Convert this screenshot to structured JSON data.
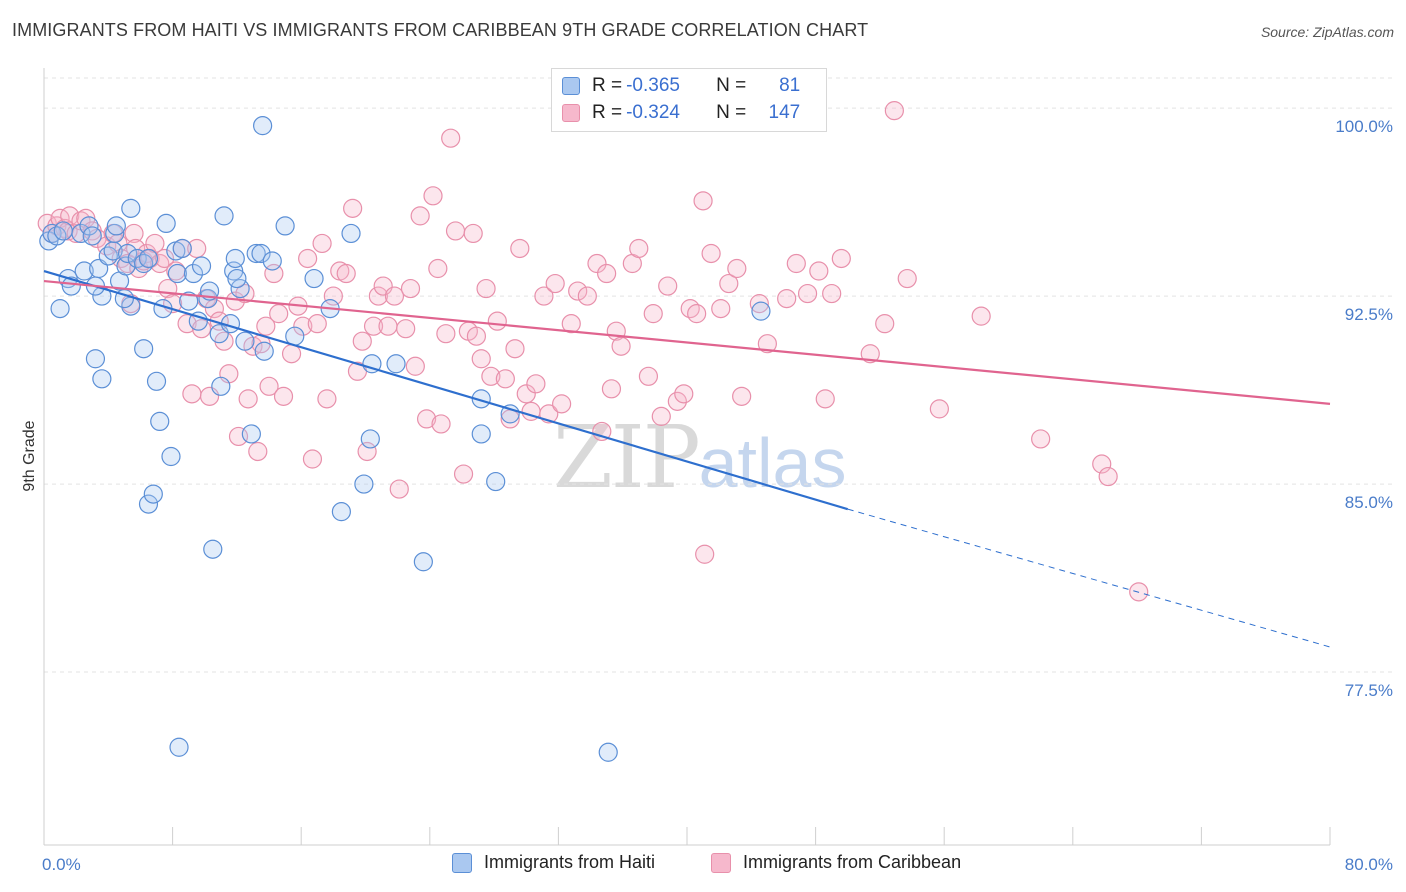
{
  "header": {
    "title": "IMMIGRANTS FROM HAITI VS IMMIGRANTS FROM CARIBBEAN 9TH GRADE CORRELATION CHART",
    "source": "Source: ZipAtlas.com"
  },
  "watermark": {
    "part1": "ZIP",
    "part2": "atlas"
  },
  "legend": {
    "rows": [
      {
        "r_label": "R = ",
        "r_value": "-0.365",
        "n_label": "N = ",
        "n_value": "81"
      },
      {
        "r_label": "R = ",
        "r_value": "-0.324",
        "n_label": "N = ",
        "n_value": "147"
      }
    ]
  },
  "bottom_legend": {
    "haiti": "Immigrants from Haiti",
    "caribbean": "Immigrants from Caribbean"
  },
  "colors": {
    "haiti_fill": "#aac8f0",
    "haiti_stroke": "#5b8fd6",
    "haiti_line": "#2e6fce",
    "caribbean_fill": "#f6b8cc",
    "caribbean_stroke": "#e890ab",
    "caribbean_line": "#e0648f",
    "grid": "#e3e3e3",
    "axis_text": "#4a7cc9"
  },
  "chart_data": {
    "type": "scatter",
    "title": "IMMIGRANTS FROM HAITI VS IMMIGRANTS FROM CARIBBEAN 9TH GRADE CORRELATION CHART",
    "xlabel": "",
    "ylabel": "9th Grade",
    "xlim": [
      0,
      80
    ],
    "ylim": [
      70.6,
      101.6
    ],
    "x_tick_labels": [
      "0.0%",
      "80.0%"
    ],
    "y_ticks": [
      77.5,
      85.0,
      92.5,
      100.0
    ],
    "y_tick_labels": [
      "77.5%",
      "85.0%",
      "92.5%",
      "100.0%"
    ],
    "grid": true,
    "legend_position": "top-center",
    "series": [
      {
        "name": "Immigrants from Haiti",
        "R": -0.365,
        "N": 81,
        "trend": {
          "x_start": 0.0,
          "y_start": 93.5,
          "x_solid_end": 50.0,
          "y_solid_end": 84.0,
          "x_dashed_end": 80.0,
          "y_dashed_end": 78.5
        },
        "points": [
          [
            0.3,
            94.7
          ],
          [
            0.5,
            95.0
          ],
          [
            0.8,
            94.9
          ],
          [
            1.2,
            95.1
          ],
          [
            1.0,
            92.0
          ],
          [
            1.5,
            93.2
          ],
          [
            1.7,
            92.9
          ],
          [
            2.3,
            95.0
          ],
          [
            2.8,
            95.3
          ],
          [
            2.5,
            93.5
          ],
          [
            3.0,
            94.9
          ],
          [
            3.4,
            93.6
          ],
          [
            3.6,
            89.2
          ],
          [
            3.2,
            90.0
          ],
          [
            3.6,
            92.5
          ],
          [
            4.0,
            94.1
          ],
          [
            4.3,
            94.3
          ],
          [
            4.4,
            95.0
          ],
          [
            4.5,
            95.3
          ],
          [
            4.7,
            93.1
          ],
          [
            5.1,
            93.7
          ],
          [
            5.2,
            94.2
          ],
          [
            5.4,
            92.1
          ],
          [
            5.4,
            96.0
          ],
          [
            5.8,
            94.0
          ],
          [
            6.2,
            93.8
          ],
          [
            6.2,
            90.4
          ],
          [
            6.5,
            94.0
          ],
          [
            6.5,
            84.2
          ],
          [
            6.8,
            84.6
          ],
          [
            7.0,
            89.1
          ],
          [
            7.2,
            87.5
          ],
          [
            7.6,
            95.4
          ],
          [
            7.9,
            86.1
          ],
          [
            8.2,
            94.3
          ],
          [
            8.3,
            93.4
          ],
          [
            8.4,
            74.5
          ],
          [
            8.6,
            94.4
          ],
          [
            9.0,
            92.3
          ],
          [
            9.3,
            93.4
          ],
          [
            9.6,
            91.5
          ],
          [
            9.8,
            93.7
          ],
          [
            10.2,
            92.4
          ],
          [
            10.3,
            92.7
          ],
          [
            10.5,
            82.4
          ],
          [
            10.9,
            91.0
          ],
          [
            11.0,
            88.9
          ],
          [
            11.2,
            95.7
          ],
          [
            11.6,
            91.4
          ],
          [
            11.8,
            93.5
          ],
          [
            11.9,
            94.0
          ],
          [
            12.2,
            92.8
          ],
          [
            12.5,
            90.7
          ],
          [
            12.9,
            87.0
          ],
          [
            13.2,
            94.2
          ],
          [
            13.5,
            94.2
          ],
          [
            13.6,
            99.3
          ],
          [
            13.7,
            90.3
          ],
          [
            14.2,
            93.9
          ],
          [
            15.0,
            95.3
          ],
          [
            15.6,
            90.9
          ],
          [
            16.8,
            93.2
          ],
          [
            17.8,
            92.0
          ],
          [
            18.5,
            83.9
          ],
          [
            19.1,
            95.0
          ],
          [
            19.9,
            85.0
          ],
          [
            20.3,
            86.8
          ],
          [
            20.4,
            89.8
          ],
          [
            21.9,
            89.8
          ],
          [
            23.6,
            81.9
          ],
          [
            27.2,
            88.4
          ],
          [
            27.2,
            87.0
          ],
          [
            28.1,
            85.1
          ],
          [
            29.0,
            87.8
          ],
          [
            32.5,
            100.0
          ],
          [
            35.1,
            74.3
          ],
          [
            44.6,
            91.9
          ],
          [
            3.2,
            92.9
          ],
          [
            5.0,
            92.4
          ],
          [
            7.4,
            92.0
          ],
          [
            12.0,
            93.2
          ]
        ]
      },
      {
        "name": "Immigrants from Caribbean",
        "R": -0.324,
        "N": 147,
        "trend": {
          "x_start": 0.0,
          "y_start": 93.1,
          "x_end": 80.0,
          "y_end": 88.2
        },
        "points": [
          [
            0.2,
            95.4
          ],
          [
            0.5,
            95.0
          ],
          [
            0.8,
            95.3
          ],
          [
            1.0,
            95.6
          ],
          [
            1.3,
            95.2
          ],
          [
            1.5,
            95.1
          ],
          [
            1.6,
            95.7
          ],
          [
            2.0,
            95.0
          ],
          [
            2.3,
            95.5
          ],
          [
            2.6,
            95.6
          ],
          [
            3.0,
            95.1
          ],
          [
            3.3,
            94.8
          ],
          [
            3.9,
            94.5
          ],
          [
            4.3,
            95.0
          ],
          [
            4.6,
            94.6
          ],
          [
            4.8,
            94.0
          ],
          [
            5.2,
            93.8
          ],
          [
            5.4,
            92.2
          ],
          [
            5.6,
            95.0
          ],
          [
            5.7,
            94.4
          ],
          [
            5.9,
            93.6
          ],
          [
            6.2,
            93.9
          ],
          [
            6.4,
            94.2
          ],
          [
            6.6,
            94.0
          ],
          [
            6.9,
            94.6
          ],
          [
            7.2,
            93.8
          ],
          [
            7.5,
            94.0
          ],
          [
            7.7,
            92.8
          ],
          [
            8.0,
            92.2
          ],
          [
            8.2,
            93.5
          ],
          [
            8.6,
            94.4
          ],
          [
            8.9,
            91.4
          ],
          [
            9.2,
            88.6
          ],
          [
            9.5,
            94.4
          ],
          [
            9.8,
            91.2
          ],
          [
            10.1,
            92.4
          ],
          [
            10.3,
            88.5
          ],
          [
            10.6,
            92.0
          ],
          [
            10.9,
            91.5
          ],
          [
            11.2,
            90.7
          ],
          [
            11.5,
            89.4
          ],
          [
            11.9,
            92.3
          ],
          [
            12.1,
            86.9
          ],
          [
            12.5,
            92.6
          ],
          [
            12.7,
            88.4
          ],
          [
            13.0,
            90.5
          ],
          [
            13.3,
            86.3
          ],
          [
            13.5,
            90.6
          ],
          [
            13.8,
            91.3
          ],
          [
            14.0,
            88.9
          ],
          [
            14.3,
            93.4
          ],
          [
            14.6,
            91.8
          ],
          [
            14.9,
            88.5
          ],
          [
            15.4,
            90.2
          ],
          [
            15.8,
            92.1
          ],
          [
            16.1,
            91.3
          ],
          [
            16.4,
            94.0
          ],
          [
            16.7,
            86.0
          ],
          [
            17.0,
            91.4
          ],
          [
            17.3,
            94.6
          ],
          [
            17.6,
            88.4
          ],
          [
            18.0,
            92.5
          ],
          [
            18.4,
            93.5
          ],
          [
            18.8,
            93.4
          ],
          [
            19.2,
            96.0
          ],
          [
            19.5,
            89.5
          ],
          [
            19.8,
            90.7
          ],
          [
            20.1,
            86.3
          ],
          [
            20.5,
            91.3
          ],
          [
            20.8,
            92.5
          ],
          [
            21.1,
            92.9
          ],
          [
            21.4,
            91.3
          ],
          [
            21.8,
            92.5
          ],
          [
            22.1,
            84.8
          ],
          [
            22.5,
            91.2
          ],
          [
            22.8,
            92.8
          ],
          [
            23.1,
            89.7
          ],
          [
            23.4,
            95.7
          ],
          [
            23.8,
            87.6
          ],
          [
            24.2,
            96.5
          ],
          [
            24.5,
            93.6
          ],
          [
            24.7,
            87.4
          ],
          [
            25.0,
            91.0
          ],
          [
            25.3,
            98.8
          ],
          [
            25.6,
            95.1
          ],
          [
            26.1,
            85.4
          ],
          [
            26.4,
            91.1
          ],
          [
            26.7,
            95.0
          ],
          [
            26.9,
            90.9
          ],
          [
            27.2,
            90.0
          ],
          [
            27.5,
            92.8
          ],
          [
            27.8,
            89.3
          ],
          [
            28.2,
            91.5
          ],
          [
            28.7,
            89.2
          ],
          [
            29.0,
            87.6
          ],
          [
            29.3,
            90.4
          ],
          [
            29.6,
            94.4
          ],
          [
            30.0,
            88.6
          ],
          [
            30.3,
            87.9
          ],
          [
            30.6,
            89.0
          ],
          [
            31.1,
            92.5
          ],
          [
            31.4,
            87.8
          ],
          [
            31.8,
            93.0
          ],
          [
            32.2,
            88.2
          ],
          [
            32.8,
            91.4
          ],
          [
            33.2,
            92.7
          ],
          [
            33.8,
            92.5
          ],
          [
            34.4,
            93.8
          ],
          [
            34.7,
            87.1
          ],
          [
            35.0,
            93.4
          ],
          [
            35.3,
            88.8
          ],
          [
            35.6,
            91.1
          ],
          [
            35.9,
            90.5
          ],
          [
            36.6,
            93.8
          ],
          [
            37.0,
            94.4
          ],
          [
            37.6,
            89.3
          ],
          [
            37.9,
            91.8
          ],
          [
            38.4,
            87.7
          ],
          [
            38.8,
            92.9
          ],
          [
            39.4,
            88.3
          ],
          [
            39.8,
            88.6
          ],
          [
            40.2,
            92.0
          ],
          [
            40.6,
            91.8
          ],
          [
            41.0,
            96.3
          ],
          [
            41.5,
            94.2
          ],
          [
            42.1,
            92.0
          ],
          [
            42.6,
            93.0
          ],
          [
            43.1,
            93.6
          ],
          [
            43.4,
            88.5
          ],
          [
            44.5,
            92.2
          ],
          [
            45.0,
            90.6
          ],
          [
            46.2,
            92.4
          ],
          [
            46.8,
            93.8
          ],
          [
            47.5,
            92.6
          ],
          [
            48.2,
            93.5
          ],
          [
            48.6,
            88.4
          ],
          [
            49.0,
            92.6
          ],
          [
            49.6,
            94.0
          ],
          [
            51.4,
            90.2
          ],
          [
            52.3,
            91.4
          ],
          [
            53.7,
            93.2
          ],
          [
            55.7,
            88.0
          ],
          [
            58.3,
            91.7
          ],
          [
            62.0,
            86.8
          ],
          [
            65.8,
            85.8
          ],
          [
            66.2,
            85.3
          ],
          [
            68.1,
            80.7
          ],
          [
            41.1,
            82.2
          ],
          [
            52.9,
            99.9
          ]
        ]
      }
    ]
  }
}
